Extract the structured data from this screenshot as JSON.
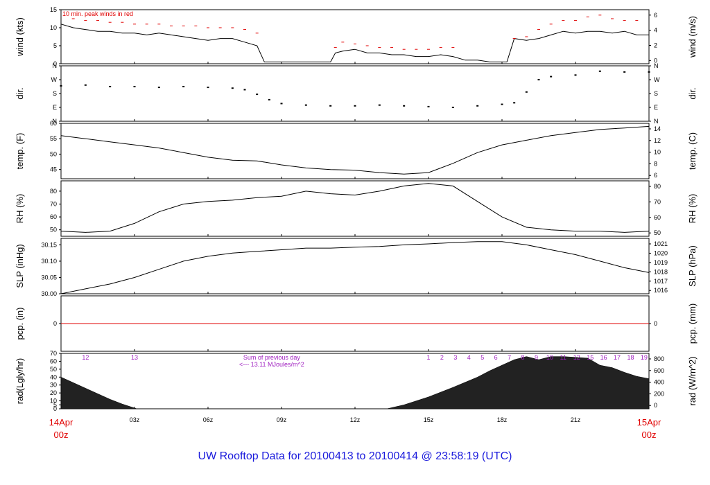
{
  "title": "UW Rooftop Data for 20100413  to  20100414 @ 23:58:19  (UTC)",
  "x_axis": {
    "ticks": [
      "03z",
      "06z",
      "09z",
      "12z",
      "15z",
      "18z",
      "21z"
    ],
    "start_date": "14Apr",
    "start_hour": "00z",
    "end_date": "15Apr",
    "end_hour": "00z",
    "range_hours": [
      0,
      24
    ]
  },
  "colors": {
    "title": "#1a1adc",
    "peak": "#e00000",
    "precip_line": "#e00000",
    "rad_labels": "#a020c0",
    "data": "#000000"
  },
  "chart_data": [
    {
      "type": "line",
      "id": "wind",
      "ylabel_left": "wind (kts)",
      "ylabel_right": "wind (m/s)",
      "annotation": "10 min. peak winds in red",
      "ylim": [
        0,
        15
      ],
      "yticks": [
        0,
        5,
        10,
        15
      ],
      "right_ticks": [
        "0",
        "2",
        "4",
        "6"
      ],
      "x": [
        0,
        0.5,
        1,
        1.5,
        2,
        2.5,
        3,
        3.5,
        4,
        4.5,
        5,
        5.5,
        6,
        6.5,
        7,
        7.5,
        8,
        8.3,
        8.5,
        9,
        10,
        11,
        11.2,
        11.5,
        12,
        12.5,
        13,
        13.5,
        14,
        14.5,
        15,
        15.5,
        16,
        16.5,
        17,
        17.5,
        18,
        18.2,
        18.5,
        19,
        19.5,
        20,
        20.5,
        21,
        21.5,
        22,
        22.5,
        23,
        23.5,
        24
      ],
      "values": [
        11,
        10,
        9.5,
        9,
        9,
        8.5,
        8.5,
        8,
        8.5,
        8,
        7.5,
        7,
        6.5,
        7,
        7,
        6,
        5,
        0.5,
        0.5,
        0.5,
        0.5,
        0.5,
        3,
        3.5,
        4,
        3,
        3,
        2.5,
        2.5,
        2,
        2,
        2.5,
        2,
        1,
        1,
        0.5,
        0.5,
        0.5,
        7,
        6.5,
        7,
        8,
        9,
        8.5,
        9,
        9,
        8.5,
        9,
        8,
        8
      ],
      "peak_x": [
        0.5,
        1,
        1.5,
        2,
        2.5,
        3,
        3.5,
        4,
        4.5,
        5,
        5.5,
        6,
        6.5,
        7,
        7.5,
        8,
        11.2,
        11.5,
        12,
        12.5,
        13,
        13.5,
        14,
        14.5,
        15,
        15.5,
        16,
        18.5,
        19,
        19.5,
        20,
        20.5,
        21,
        21.5,
        22,
        22.5,
        23,
        23.5
      ],
      "peak_values": [
        12.5,
        12,
        12,
        11.5,
        11.5,
        11,
        11,
        11,
        10.5,
        10.5,
        10.5,
        10,
        10,
        10,
        9.5,
        8.5,
        4.5,
        6,
        5.5,
        5,
        4.5,
        4.5,
        4,
        4,
        4,
        4.5,
        4.5,
        7,
        7.5,
        9.5,
        11,
        12,
        12,
        13,
        13.5,
        12.5,
        12,
        12
      ]
    },
    {
      "type": "scatter",
      "id": "dir",
      "ylabel_left": "dir.",
      "ylabel_right": "dir.",
      "ylim": [
        0,
        360
      ],
      "ytick_labels": [
        "N",
        "E",
        "S",
        "W",
        "N"
      ],
      "x": [
        0,
        1,
        2,
        3,
        4,
        5,
        6,
        7,
        7.5,
        8,
        8.5,
        9,
        10,
        11,
        12,
        13,
        14,
        15,
        16,
        17,
        18,
        18.5,
        19,
        19.5,
        20,
        21,
        22,
        23,
        24
      ],
      "values": [
        230,
        235,
        225,
        225,
        220,
        225,
        220,
        215,
        205,
        175,
        140,
        115,
        105,
        100,
        100,
        105,
        100,
        95,
        90,
        100,
        110,
        120,
        190,
        270,
        290,
        300,
        325,
        320,
        320
      ]
    },
    {
      "type": "line",
      "id": "temp",
      "ylabel_left": "temp. (F)",
      "ylabel_right": "temp. (C)",
      "ylim": [
        42,
        60
      ],
      "yticks": [
        45,
        50,
        55,
        60
      ],
      "right_ticks": [
        "6",
        "8",
        "10",
        "12",
        "14"
      ],
      "x": [
        0,
        1,
        2,
        3,
        4,
        5,
        6,
        7,
        8,
        9,
        10,
        11,
        12,
        13,
        14,
        15,
        16,
        17,
        18,
        19,
        20,
        21,
        22,
        23,
        24
      ],
      "values": [
        56,
        55,
        54,
        53,
        52,
        50.5,
        49,
        48,
        47.8,
        46.5,
        45.5,
        45,
        44.8,
        44,
        43.5,
        44,
        47,
        50.5,
        53,
        54.5,
        56,
        57,
        58,
        58.5,
        59
      ]
    },
    {
      "type": "line",
      "id": "rh",
      "ylabel_left": "RH (%)",
      "ylabel_right": "RH (%)",
      "ylim": [
        45,
        88
      ],
      "yticks": [
        50,
        60,
        70,
        80
      ],
      "right_ticks": [
        "50",
        "60",
        "70",
        "80"
      ],
      "x": [
        0,
        1,
        2,
        3,
        4,
        5,
        6,
        7,
        8,
        9,
        10,
        11,
        12,
        13,
        14,
        15,
        16,
        17,
        18,
        19,
        20,
        21,
        22,
        23,
        24
      ],
      "values": [
        49,
        48,
        49,
        55,
        64,
        70,
        72,
        73,
        75,
        76,
        80,
        78,
        77,
        80,
        84,
        86,
        84,
        72,
        60,
        52,
        50,
        49,
        49,
        48,
        49
      ]
    },
    {
      "type": "line",
      "id": "slp",
      "ylabel_left": "SLP (inHg)",
      "ylabel_right": "SLP (hPa)",
      "ylim": [
        30.0,
        30.17
      ],
      "yticks": [
        30.0,
        30.05,
        30.1,
        30.15
      ],
      "ytick_labels": [
        "30.00",
        "30.05",
        "30.10",
        "30.15"
      ],
      "right_ticks": [
        "1016",
        "1017",
        "1018",
        "1019",
        "1020",
        "1021"
      ],
      "x": [
        0,
        1,
        2,
        3,
        4,
        5,
        6,
        7,
        8,
        9,
        10,
        11,
        12,
        13,
        14,
        15,
        16,
        17,
        18,
        19,
        20,
        21,
        22,
        23,
        24
      ],
      "values": [
        30.0,
        30.015,
        30.03,
        30.05,
        30.075,
        30.1,
        30.115,
        30.125,
        30.13,
        30.135,
        30.14,
        30.14,
        30.143,
        30.145,
        30.15,
        30.153,
        30.157,
        30.16,
        30.16,
        30.15,
        30.135,
        30.12,
        30.1,
        30.08,
        30.065
      ]
    },
    {
      "type": "line",
      "id": "pcp",
      "ylabel_left": "pcp. (in)",
      "ylabel_right": "pcp. (mm)",
      "ylim": [
        -1,
        1
      ],
      "yticks": [
        0
      ],
      "ytick_labels": [
        "0"
      ],
      "right_ticks": [
        "0"
      ],
      "x": [
        0,
        24
      ],
      "values": [
        0,
        0
      ]
    },
    {
      "type": "area",
      "id": "rad",
      "ylabel_left": "rad(Lgly/hr)",
      "ylabel_right": "rad (W/m^2)",
      "ylim": [
        0,
        70
      ],
      "yticks": [
        0,
        5,
        10,
        20,
        30,
        40,
        50,
        60,
        70
      ],
      "right_ticks": [
        "0",
        "200",
        "400",
        "600",
        "800"
      ],
      "annotation": "Sum of previous day",
      "annotation2": "<--- 13.11 MJoules/m^2",
      "hour_labels": [
        "12",
        "13",
        "1",
        "2",
        "3",
        "4",
        "5",
        "6",
        "7",
        "8",
        "9",
        "10",
        "11",
        "12",
        "15",
        "16",
        "17",
        "18",
        "19"
      ],
      "x": [
        0,
        0.5,
        1,
        1.5,
        2,
        2.5,
        3,
        3.1,
        13.3,
        14,
        15,
        16,
        17,
        17.5,
        18,
        18.5,
        19,
        19.5,
        20,
        20.5,
        21,
        21.5,
        22,
        22.5,
        23,
        23.5,
        24
      ],
      "values": [
        40,
        33,
        26,
        19,
        12,
        6,
        1,
        0,
        0,
        5,
        15,
        27,
        40,
        48,
        55,
        62,
        66,
        62,
        66,
        66,
        65,
        64,
        55,
        52,
        46,
        41,
        38
      ]
    }
  ]
}
